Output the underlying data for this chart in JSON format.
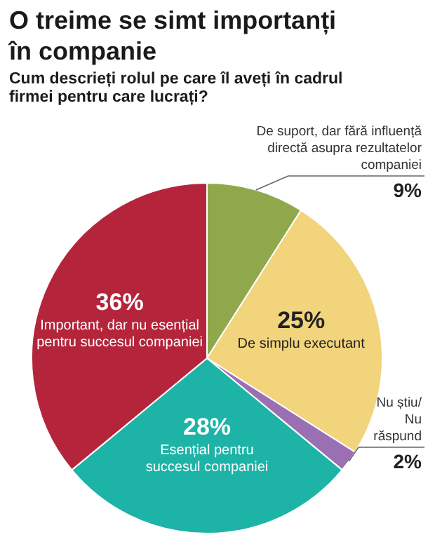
{
  "chart_data": {
    "type": "pie",
    "title": "O treime se simt importanți în companie",
    "subtitle": "Cum descrieți rolul pe care îl aveți în cadrul firmei pentru care lucrați?",
    "categories": [
      "De suport, dar fără influență directă asupra rezultatelor companiei",
      "De simplu executant",
      "Nu știu/ Nu răspund",
      "Esențial pentru succesul companiei",
      "Important, dar nu esențial pentru succesul companiei"
    ],
    "values": [
      9,
      25,
      2,
      28,
      36
    ],
    "colors": [
      "#8fa84b",
      "#f2d47c",
      "#9a6fb3",
      "#1db3a6",
      "#b4253b"
    ],
    "value_labels": [
      "9%",
      "25%",
      "2%",
      "28%",
      "36%"
    ]
  }
}
